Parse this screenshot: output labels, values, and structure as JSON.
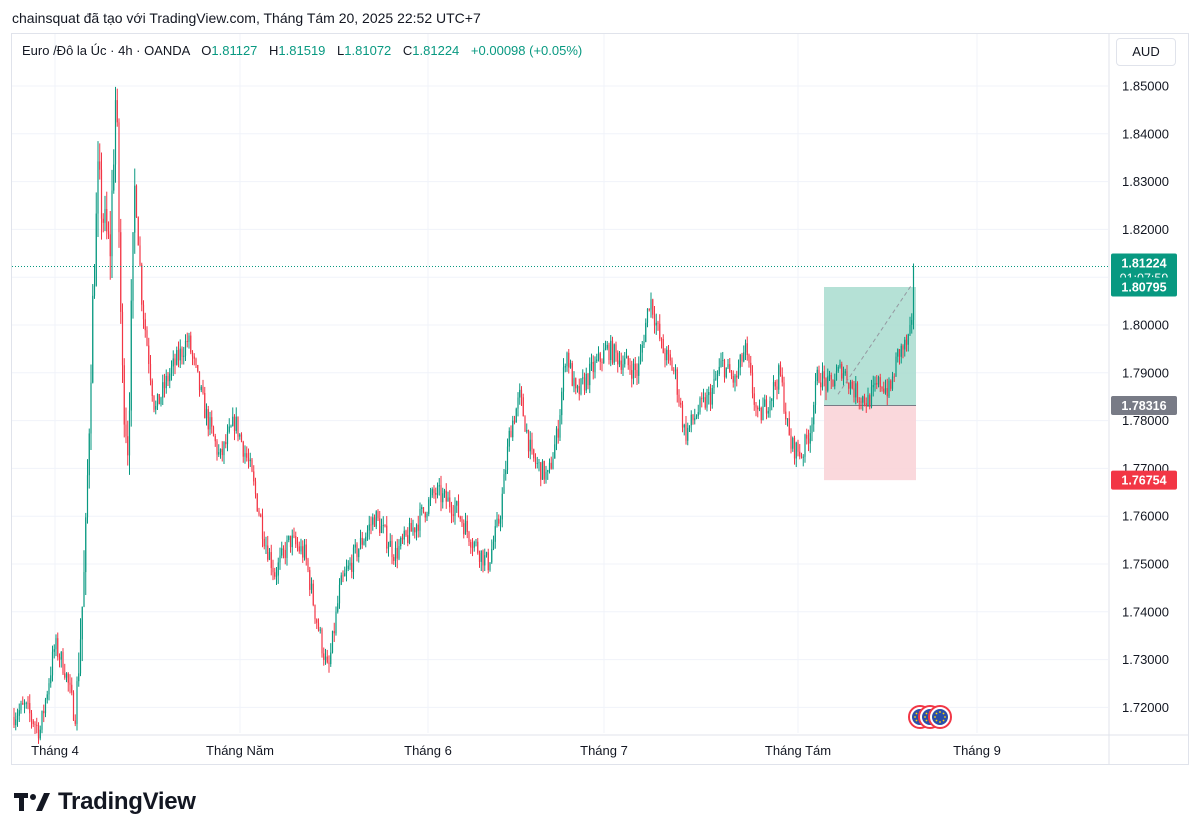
{
  "header": {
    "title": "chainsquat đã tạo với TradingView.com, Tháng Tám 20, 2025 22:52 UTC+7"
  },
  "legend": {
    "symbol": "Euro /Đô la Úc · 4h · OANDA",
    "open_label": "O",
    "open": "1.81127",
    "high_label": "H",
    "high": "1.81519",
    "low_label": "L",
    "low": "1.81072",
    "close_label": "C",
    "close": "1.81224",
    "change": "+0.00098 (+0.05%)"
  },
  "currency_button": "AUD",
  "footer": {
    "brand": "TradingView"
  },
  "colors": {
    "up": "#089981",
    "down": "#f23645",
    "grid": "#f0f3fa",
    "target_fill": "#a8dccf",
    "stop_fill": "#fad4d8",
    "entry_label": "#787b86"
  },
  "chart_data": {
    "type": "candlestick",
    "interval": "4h",
    "ylim": [
      1.7145,
      1.8565
    ],
    "y_ticks": [
      1.72,
      1.73,
      1.74,
      1.75,
      1.76,
      1.77,
      1.78,
      1.79,
      1.8,
      1.81,
      1.82,
      1.83,
      1.84,
      1.85
    ],
    "y_tick_labels": [
      "1.72000",
      "1.73000",
      "1.74000",
      "1.75000",
      "1.76000",
      "1.77000",
      "1.78000",
      "1.79000",
      "1.80000",
      "1.81000",
      "1.82000",
      "1.83000",
      "1.84000",
      "1.85000"
    ],
    "x_labels": [
      "Tháng 4",
      "Tháng Năm",
      "Tháng 6",
      "Tháng 7",
      "Tháng Tám",
      "Tháng 9"
    ],
    "grid": true,
    "price_path": [
      [
        0,
        1.718
      ],
      [
        15,
        1.72
      ],
      [
        30,
        1.715
      ],
      [
        45,
        1.733
      ],
      [
        55,
        1.728
      ],
      [
        65,
        1.718
      ],
      [
        75,
        1.75
      ],
      [
        82,
        1.8
      ],
      [
        88,
        1.83
      ],
      [
        95,
        1.82
      ],
      [
        100,
        1.815
      ],
      [
        106,
        1.85
      ],
      [
        112,
        1.79
      ],
      [
        118,
        1.775
      ],
      [
        125,
        1.83
      ],
      [
        132,
        1.805
      ],
      [
        145,
        1.782
      ],
      [
        160,
        1.79
      ],
      [
        178,
        1.797
      ],
      [
        195,
        1.782
      ],
      [
        210,
        1.772
      ],
      [
        225,
        1.78
      ],
      [
        240,
        1.77
      ],
      [
        255,
        1.755
      ],
      [
        265,
        1.748
      ],
      [
        280,
        1.755
      ],
      [
        295,
        1.752
      ],
      [
        305,
        1.74
      ],
      [
        318,
        1.727
      ],
      [
        330,
        1.745
      ],
      [
        345,
        1.752
      ],
      [
        365,
        1.76
      ],
      [
        385,
        1.752
      ],
      [
        405,
        1.758
      ],
      [
        425,
        1.765
      ],
      [
        445,
        1.762
      ],
      [
        462,
        1.755
      ],
      [
        478,
        1.75
      ],
      [
        490,
        1.76
      ],
      [
        500,
        1.778
      ],
      [
        510,
        1.785
      ],
      [
        522,
        1.772
      ],
      [
        538,
        1.768
      ],
      [
        548,
        1.778
      ],
      [
        556,
        1.795
      ],
      [
        566,
        1.785
      ],
      [
        580,
        1.79
      ],
      [
        598,
        1.795
      ],
      [
        615,
        1.792
      ],
      [
        628,
        1.79
      ],
      [
        640,
        1.806
      ],
      [
        652,
        1.795
      ],
      [
        665,
        1.79
      ],
      [
        675,
        1.777
      ],
      [
        688,
        1.782
      ],
      [
        700,
        1.785
      ],
      [
        712,
        1.792
      ],
      [
        725,
        1.788
      ],
      [
        735,
        1.795
      ],
      [
        748,
        1.78
      ],
      [
        760,
        1.785
      ],
      [
        770,
        1.79
      ],
      [
        780,
        1.775
      ],
      [
        792,
        1.773
      ],
      [
        800,
        1.778
      ],
      [
        808,
        1.79
      ],
      [
        818,
        1.787
      ],
      [
        832,
        1.791
      ],
      [
        845,
        1.786
      ],
      [
        858,
        1.784
      ],
      [
        870,
        1.788
      ],
      [
        880,
        1.786
      ],
      [
        888,
        1.794
      ],
      [
        897,
        1.796
      ],
      [
        905,
        1.801
      ],
      [
        910,
        1.808
      ],
      [
        915,
        1.8122
      ]
    ],
    "last_price": 1.81224,
    "last_price_label": "1.81224",
    "countdown": "01:07:59",
    "position": {
      "target": 1.80795,
      "target_label": "1.80795",
      "entry": 1.78316,
      "entry_label": "1.78316",
      "stop": 1.76754,
      "stop_label": "1.76754"
    },
    "event_markers": 3
  }
}
